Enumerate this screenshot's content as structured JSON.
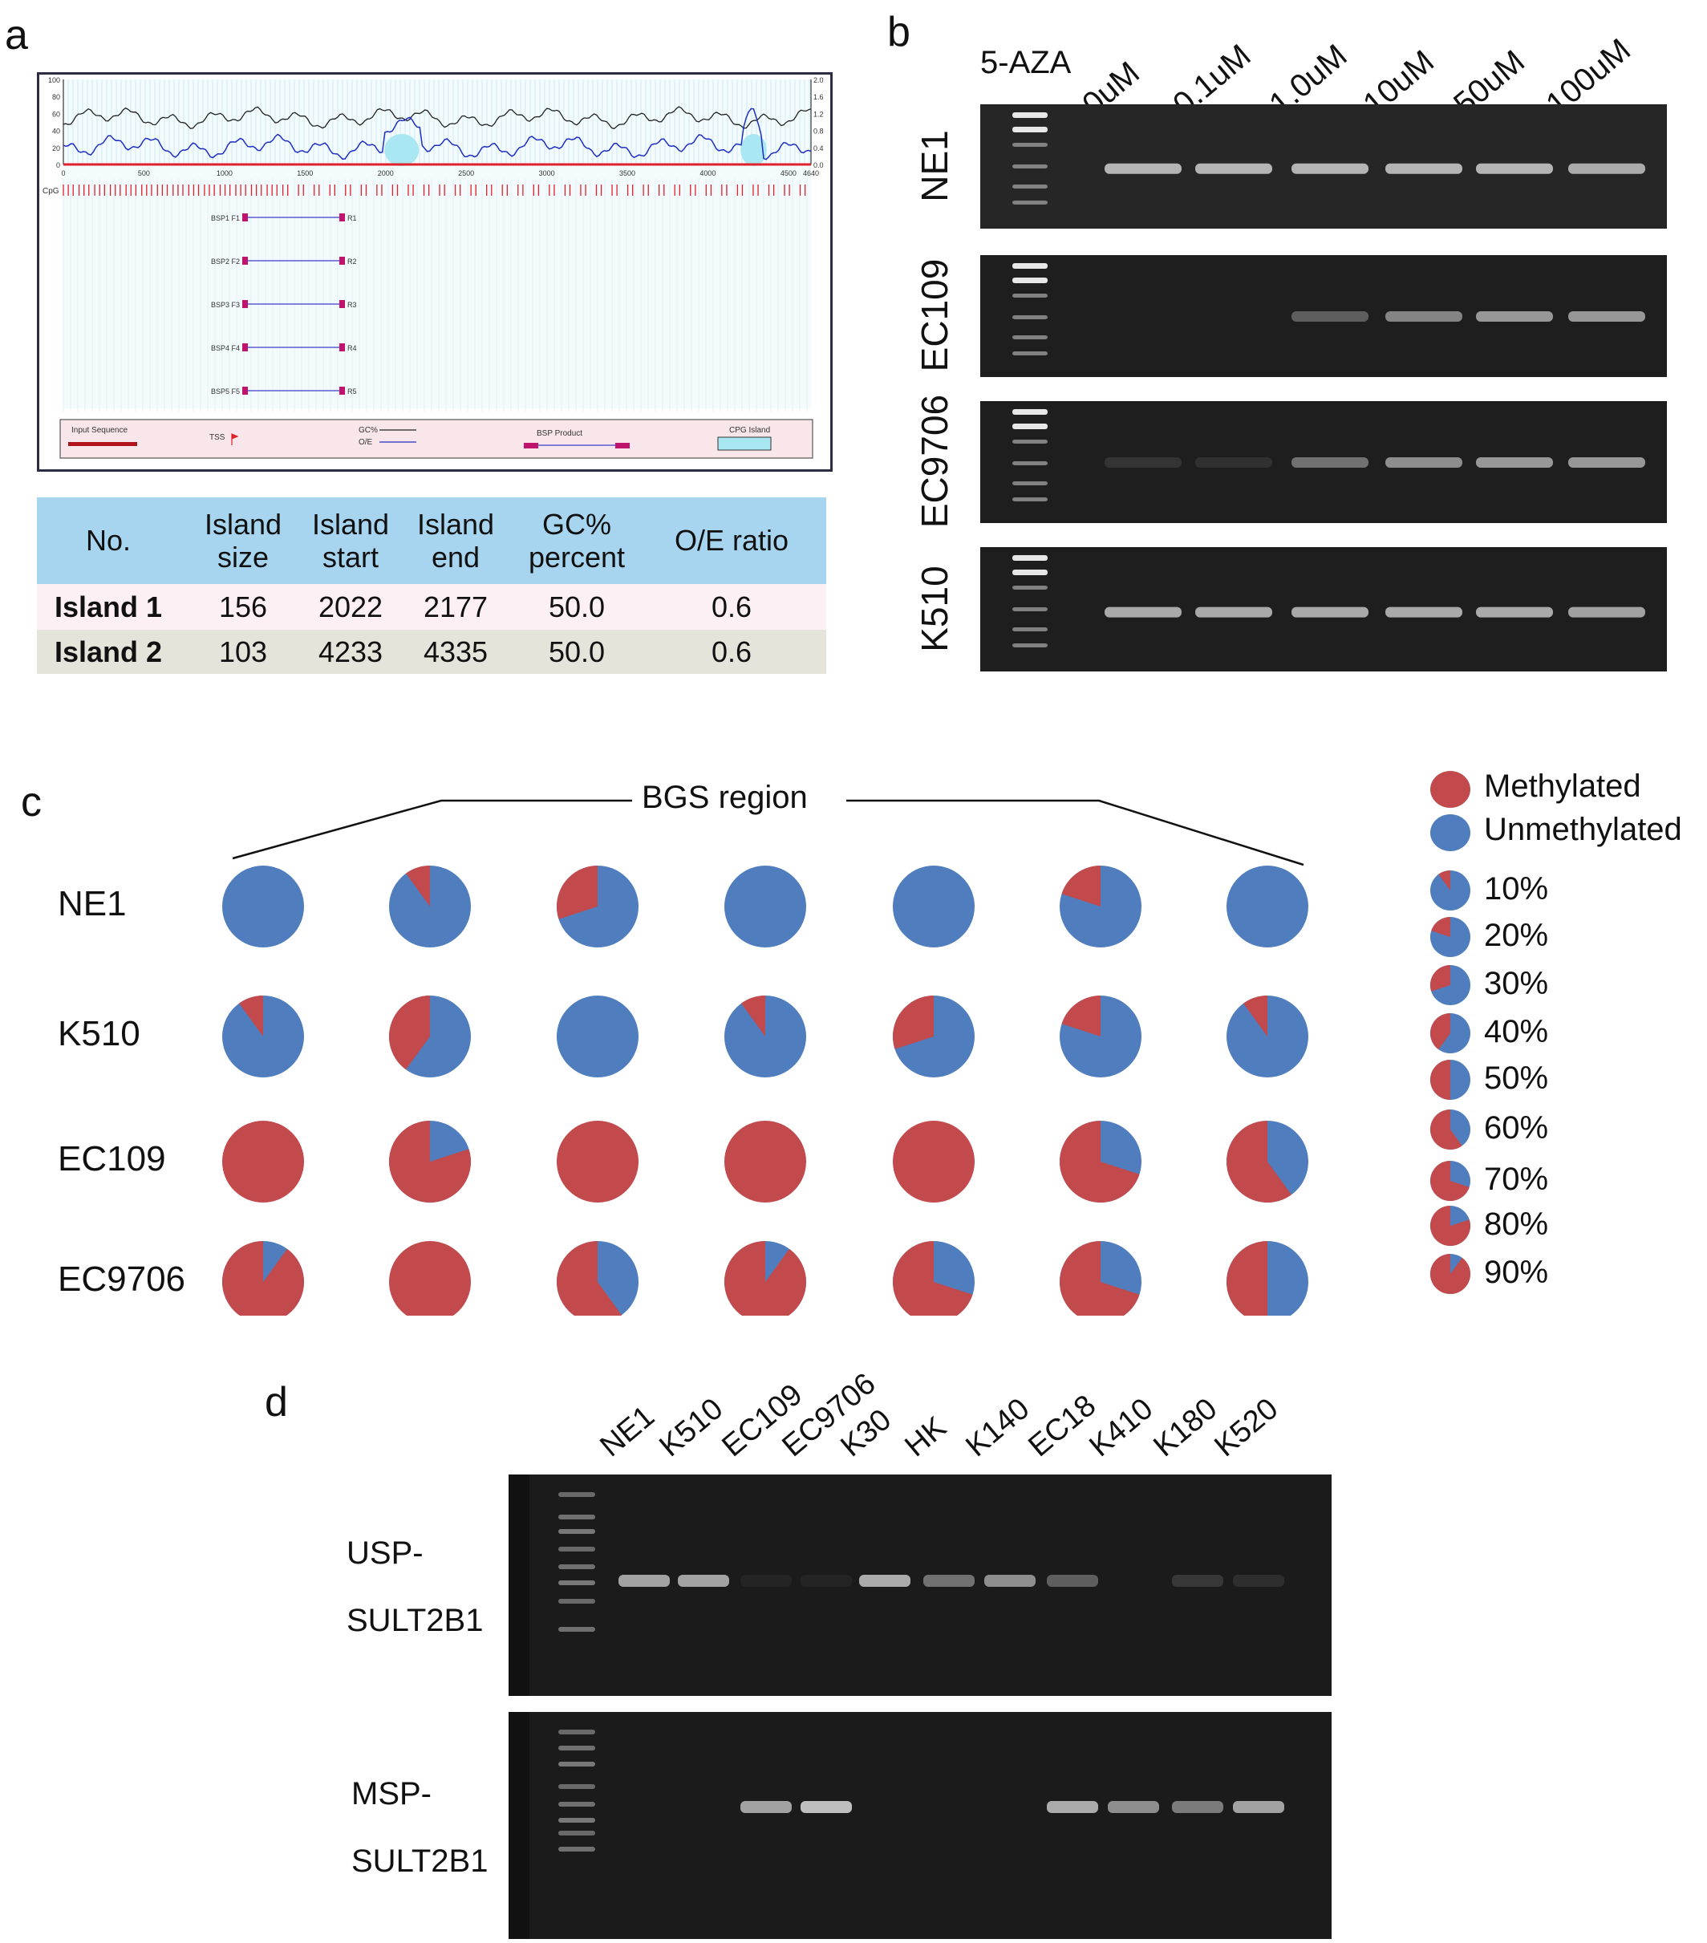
{
  "panels": {
    "a": "a",
    "b": "b",
    "c": "c",
    "d": "d"
  },
  "panel_a": {
    "plot_top": {
      "left_ticks": [
        "100",
        "80",
        "60",
        "40",
        "20",
        "0"
      ],
      "right_ticks": [
        "2.0",
        "1.6",
        "1.2",
        "0.8",
        "0.4",
        "0.0"
      ],
      "x_ticks": [
        "0",
        "500",
        "1000",
        "1500",
        "2000",
        "2500",
        "3000",
        "3500",
        "4000",
        "4500",
        "4640"
      ],
      "cpg_label": "CpG"
    },
    "bsp": [
      {
        "name": "BSP1",
        "f": "F1",
        "r": "R1"
      },
      {
        "name": "BSP2",
        "f": "F2",
        "r": "R2"
      },
      {
        "name": "BSP3",
        "f": "F3",
        "r": "R3"
      },
      {
        "name": "BSP4",
        "f": "F4",
        "r": "R4"
      },
      {
        "name": "BSP5",
        "f": "F5",
        "r": "R5"
      }
    ],
    "legend": {
      "input": "Input Sequence",
      "tss": "TSS",
      "gc": "GC%",
      "oe": "O/E",
      "bsp_product": "BSP Product",
      "cpg_island": "CPG Island"
    },
    "table": {
      "headers": [
        "No.",
        "Island size",
        "Island start",
        "Island end",
        "GC% percent",
        "O/E ratio"
      ],
      "rows": [
        [
          "Island 1",
          "156",
          "2022",
          "2177",
          "50.0",
          "0.6"
        ],
        [
          "Island 2",
          "103",
          "4233",
          "4335",
          "50.0",
          "0.6"
        ]
      ],
      "header_bg": "#a7d5f0",
      "row1_bg": "#fdf0f5",
      "row2_bg": "#e5e4db"
    }
  },
  "panel_b": {
    "treatment": "5-AZA",
    "doses": [
      "0uM",
      "0.1uM",
      "1.0uM",
      "10uM",
      "50uM",
      "100uM"
    ],
    "cell_lines": [
      "NE1",
      "EC109",
      "EC9706",
      "K510"
    ],
    "band_intensity": [
      [
        0.8,
        0.8,
        0.8,
        0.8,
        0.8,
        0.75
      ],
      [
        0.0,
        0.0,
        0.35,
        0.55,
        0.65,
        0.65
      ],
      [
        0.12,
        0.1,
        0.45,
        0.6,
        0.65,
        0.65
      ],
      [
        0.75,
        0.75,
        0.75,
        0.75,
        0.75,
        0.7
      ]
    ]
  },
  "panel_c": {
    "region_label": "BGS region",
    "rows": [
      "NE1",
      "K510",
      "EC109",
      "EC9706"
    ],
    "chart_data": {
      "type": "pie",
      "series_labels": [
        "Methylated",
        "Unmethylated"
      ],
      "methylated_fraction": [
        [
          0.0,
          0.1,
          0.3,
          0.0,
          0.0,
          0.2,
          0.0
        ],
        [
          0.1,
          0.4,
          0.0,
          0.1,
          0.3,
          0.2,
          0.1
        ],
        [
          1.0,
          0.8,
          1.0,
          1.0,
          1.0,
          0.7,
          0.6
        ],
        [
          0.9,
          1.0,
          0.6,
          0.9,
          0.7,
          0.7,
          0.5
        ]
      ]
    },
    "legend": {
      "methylated": "Methylated",
      "unmethylated": "Unmethylated",
      "scale": [
        "10%",
        "20%",
        "30%",
        "40%",
        "50%",
        "60%",
        "70%",
        "80%",
        "90%"
      ],
      "scale_values": [
        0.1,
        0.2,
        0.3,
        0.4,
        0.5,
        0.6,
        0.7,
        0.8,
        0.9
      ]
    },
    "colors": {
      "methylated": "#c34a4c",
      "unmethylated": "#4f7dbd"
    }
  },
  "panel_d": {
    "lanes": [
      "NE1",
      "K510",
      "EC109",
      "EC9706",
      "K30",
      "HK",
      "K140",
      "EC18",
      "K410",
      "K180",
      "K520"
    ],
    "gels": [
      {
        "label1": "USP-",
        "label2": "SULT2B1",
        "intensity": [
          0.7,
          0.7,
          0.05,
          0.05,
          0.75,
          0.45,
          0.6,
          0.35,
          0.0,
          0.15,
          0.1
        ]
      },
      {
        "label1": "MSP-",
        "label2": "SULT2B1",
        "intensity": [
          0.0,
          0.0,
          0.7,
          0.85,
          0.0,
          0.0,
          0.0,
          0.75,
          0.6,
          0.5,
          0.7
        ]
      }
    ]
  }
}
